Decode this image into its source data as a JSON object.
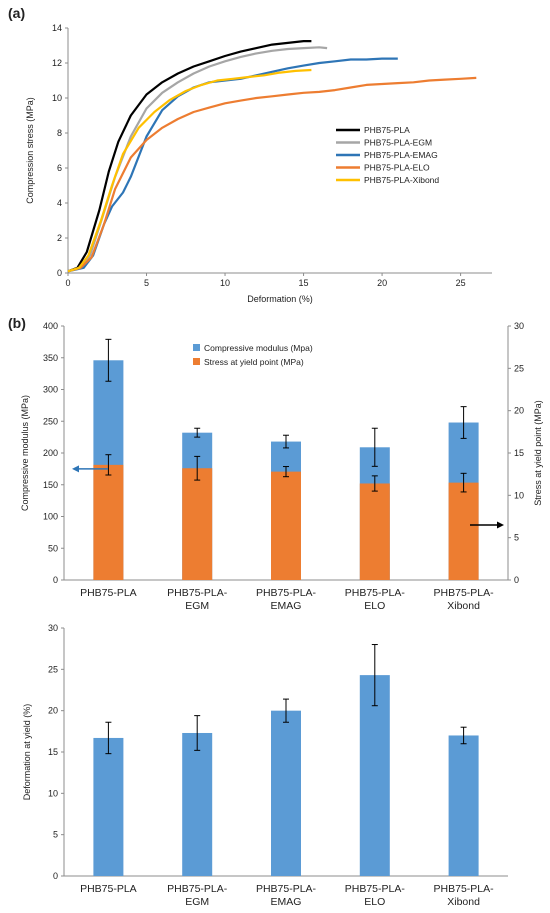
{
  "panels": [
    "(a)",
    "(b)"
  ],
  "colors": {
    "PHB75-PLA": "#000000",
    "PHB75-PLA-EGM": "#a6a6a6",
    "PHB75-PLA-EMAG": "#2e75b6",
    "PHB75-PLA-ELO": "#ed7d31",
    "PHB75-PLA-Xibond": "#ffc000",
    "modulus": "#5b9bd5",
    "stress": "#ed7d31",
    "deformation": "#5b9bd5",
    "arrow": "#2e75b6"
  },
  "chart_data": [
    {
      "type": "line",
      "title": "",
      "xlabel": "Deformation (%)",
      "ylabel": "Compression stress (MPa)",
      "xlim": [
        0,
        27
      ],
      "ylim": [
        0,
        14
      ],
      "xticks": [
        0,
        5,
        10,
        15,
        20,
        25
      ],
      "yticks": [
        0,
        2,
        4,
        6,
        8,
        10,
        12,
        14
      ],
      "legend": "right",
      "series": [
        {
          "name": "PHB75-PLA",
          "points": [
            [
              0,
              0.1
            ],
            [
              0.6,
              0.3
            ],
            [
              1.2,
              1.2
            ],
            [
              2,
              3.6
            ],
            [
              2.6,
              5.8
            ],
            [
              3.2,
              7.5
            ],
            [
              4,
              9.0
            ],
            [
              5,
              10.2
            ],
            [
              6,
              10.9
            ],
            [
              7,
              11.4
            ],
            [
              8,
              11.8
            ],
            [
              9,
              12.1
            ],
            [
              10,
              12.4
            ],
            [
              11,
              12.65
            ],
            [
              12,
              12.85
            ],
            [
              13,
              13.05
            ],
            [
              14,
              13.15
            ],
            [
              15,
              13.25
            ],
            [
              15.5,
              13.25
            ]
          ]
        },
        {
          "name": "PHB75-PLA-EGM",
          "points": [
            [
              0,
              0.1
            ],
            [
              0.8,
              0.3
            ],
            [
              1.4,
              1.0
            ],
            [
              2.2,
              3.2
            ],
            [
              3,
              5.5
            ],
            [
              4,
              7.8
            ],
            [
              5,
              9.4
            ],
            [
              6,
              10.3
            ],
            [
              7,
              10.9
            ],
            [
              8,
              11.4
            ],
            [
              9,
              11.8
            ],
            [
              10,
              12.1
            ],
            [
              11,
              12.35
            ],
            [
              12,
              12.55
            ],
            [
              13,
              12.7
            ],
            [
              14,
              12.8
            ],
            [
              15,
              12.85
            ],
            [
              16,
              12.9
            ],
            [
              16.5,
              12.85
            ]
          ]
        },
        {
          "name": "PHB75-PLA-EMAG",
          "points": [
            [
              0,
              0.1
            ],
            [
              1,
              0.3
            ],
            [
              1.6,
              1.0
            ],
            [
              2.3,
              2.8
            ],
            [
              2.8,
              3.8
            ],
            [
              3.5,
              4.6
            ],
            [
              4,
              5.5
            ],
            [
              5,
              7.8
            ],
            [
              6,
              9.3
            ],
            [
              7,
              10.1
            ],
            [
              8,
              10.6
            ],
            [
              9,
              10.9
            ],
            [
              10,
              11.0
            ],
            [
              11,
              11.1
            ],
            [
              12,
              11.3
            ],
            [
              13,
              11.5
            ],
            [
              14,
              11.7
            ],
            [
              15,
              11.85
            ],
            [
              16,
              12.0
            ],
            [
              17,
              12.1
            ],
            [
              18,
              12.2
            ],
            [
              19,
              12.2
            ],
            [
              20,
              12.25
            ],
            [
              21,
              12.25
            ]
          ]
        },
        {
          "name": "PHB75-PLA-ELO",
          "points": [
            [
              0,
              0.1
            ],
            [
              0.8,
              0.3
            ],
            [
              1.5,
              0.9
            ],
            [
              2.3,
              2.8
            ],
            [
              3,
              4.8
            ],
            [
              4,
              6.6
            ],
            [
              5,
              7.6
            ],
            [
              6,
              8.3
            ],
            [
              7,
              8.8
            ],
            [
              8,
              9.2
            ],
            [
              9,
              9.45
            ],
            [
              10,
              9.7
            ],
            [
              11,
              9.85
            ],
            [
              12,
              10.0
            ],
            [
              13,
              10.1
            ],
            [
              14,
              10.2
            ],
            [
              15,
              10.3
            ],
            [
              16,
              10.35
            ],
            [
              17,
              10.45
            ],
            [
              18,
              10.6
            ],
            [
              19,
              10.75
            ],
            [
              20,
              10.8
            ],
            [
              21,
              10.85
            ],
            [
              22,
              10.9
            ],
            [
              23,
              11.0
            ],
            [
              24,
              11.05
            ],
            [
              25,
              11.1
            ],
            [
              26,
              11.15
            ]
          ]
        },
        {
          "name": "PHB75-PLA-Xibond",
          "points": [
            [
              0,
              0.1
            ],
            [
              0.7,
              0.3
            ],
            [
              1.3,
              1.0
            ],
            [
              2.1,
              3.0
            ],
            [
              2.8,
              5.0
            ],
            [
              3.5,
              6.8
            ],
            [
              4.5,
              8.3
            ],
            [
              5.5,
              9.2
            ],
            [
              6.5,
              9.9
            ],
            [
              7.5,
              10.4
            ],
            [
              8.5,
              10.75
            ],
            [
              9.5,
              11.0
            ],
            [
              10.5,
              11.1
            ],
            [
              11.5,
              11.2
            ],
            [
              12.5,
              11.3
            ],
            [
              13.5,
              11.45
            ],
            [
              14.5,
              11.55
            ],
            [
              15.5,
              11.6
            ]
          ]
        }
      ]
    },
    {
      "type": "bar",
      "title": "",
      "categories": [
        [
          "PHB75-PLA"
        ],
        [
          "PHB75-PLA-",
          "EGM"
        ],
        [
          "PHB75-PLA-",
          "EMAG"
        ],
        [
          "PHB75-PLA-",
          "ELO"
        ],
        [
          "PHB75-PLA-",
          "Xibond"
        ]
      ],
      "ylabel": "Compressive modulus (MPa)",
      "y2label": "Stress at yield point (MPa)",
      "ylim": [
        0,
        400
      ],
      "y2lim": [
        0,
        30
      ],
      "yticks": [
        0,
        50,
        100,
        150,
        200,
        250,
        300,
        350,
        400
      ],
      "y2ticks": [
        0,
        5,
        10,
        15,
        20,
        25,
        30
      ],
      "legend": "top-center",
      "series": [
        {
          "name": "Compressive modulus (Mpa)",
          "axis": "left",
          "values": [
            346,
            232,
            218,
            209,
            248
          ],
          "errors": [
            33,
            7,
            10,
            30,
            25
          ]
        },
        {
          "name": "Stress at yield point (MPa)",
          "axis": "right",
          "values": [
            13.6,
            13.2,
            12.8,
            11.4,
            11.5
          ],
          "errors": [
            1.2,
            1.4,
            0.6,
            0.9,
            1.1
          ]
        }
      ]
    },
    {
      "type": "bar",
      "title": "",
      "categories": [
        [
          "PHB75-PLA"
        ],
        [
          "PHB75-PLA-",
          "EGM"
        ],
        [
          "PHB75-PLA-",
          "EMAG"
        ],
        [
          "PHB75-PLA-",
          "ELO"
        ],
        [
          "PHB75-PLA-",
          "Xibond"
        ]
      ],
      "ylabel": "Deformation at yield (%)",
      "ylim": [
        0,
        30
      ],
      "yticks": [
        0,
        5,
        10,
        15,
        20,
        25,
        30
      ],
      "series": [
        {
          "name": "",
          "values": [
            16.7,
            17.3,
            20.0,
            24.3,
            17.0
          ],
          "errors": [
            1.9,
            2.1,
            1.4,
            3.7,
            1.0
          ]
        }
      ]
    }
  ]
}
